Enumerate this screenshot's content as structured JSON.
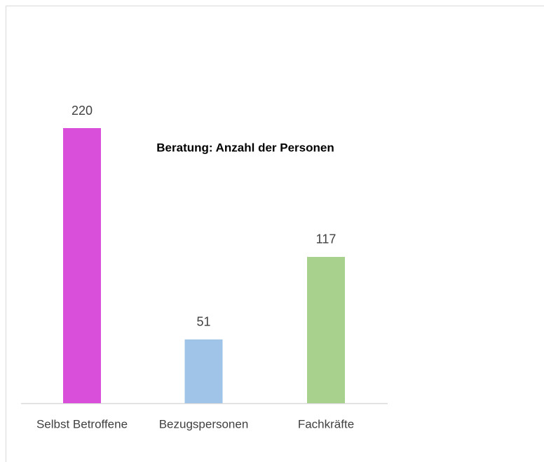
{
  "chart_data": {
    "type": "bar",
    "title": "Beratung: Anzahl der Personen",
    "categories": [
      "Selbst Betroffene",
      "Bezugspersonen",
      "Fachkräfte"
    ],
    "values": [
      220,
      51,
      117
    ],
    "colors": [
      "#d94fd9",
      "#9fc4e8",
      "#a8d18d"
    ]
  }
}
